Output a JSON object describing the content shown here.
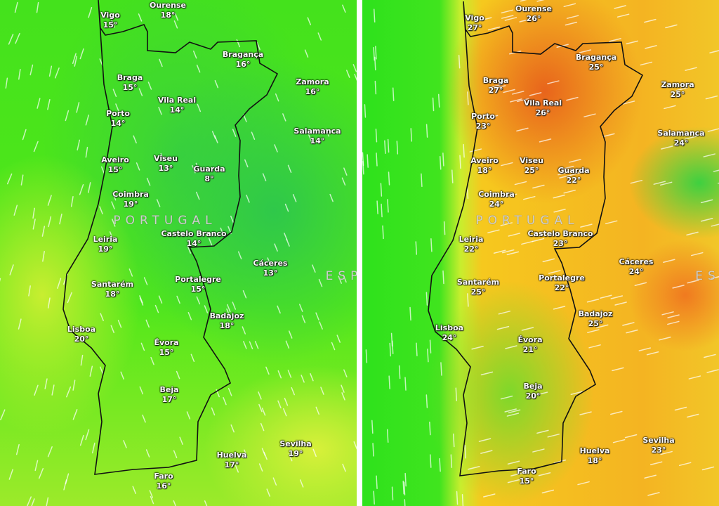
{
  "panels": [
    {
      "country_labels": {
        "portugal": "PORTUGAL",
        "spain": "ESP"
      },
      "colors": {
        "land": "#3ad23a",
        "sea": "#44e21c",
        "border": "#111111"
      },
      "cities": [
        {
          "name": "Vigo",
          "temp": "15°"
        },
        {
          "name": "Ourense",
          "temp": "18°"
        },
        {
          "name": "Bragança",
          "temp": "16°"
        },
        {
          "name": "Braga",
          "temp": "15°"
        },
        {
          "name": "Vila Real",
          "temp": "14°"
        },
        {
          "name": "Zamora",
          "temp": "16°"
        },
        {
          "name": "Porto",
          "temp": "14°"
        },
        {
          "name": "Salamanca",
          "temp": "14°"
        },
        {
          "name": "Aveiro",
          "temp": "15°"
        },
        {
          "name": "Viseu",
          "temp": "13°"
        },
        {
          "name": "Guarda",
          "temp": "8°"
        },
        {
          "name": "Coimbra",
          "temp": "19°"
        },
        {
          "name": "Leiria",
          "temp": "19°"
        },
        {
          "name": "Castelo Branco",
          "temp": "14°"
        },
        {
          "name": "Cáceres",
          "temp": "13°"
        },
        {
          "name": "Santarém",
          "temp": "18°"
        },
        {
          "name": "Portalegre",
          "temp": "15°"
        },
        {
          "name": "Lisboa",
          "temp": "20°"
        },
        {
          "name": "Badajoz",
          "temp": "18°"
        },
        {
          "name": "Évora",
          "temp": "15°"
        },
        {
          "name": "Beja",
          "temp": "17°"
        },
        {
          "name": "Huelva",
          "temp": "17°"
        },
        {
          "name": "Sevilha",
          "temp": "19°"
        },
        {
          "name": "Faro",
          "temp": "16°"
        }
      ]
    },
    {
      "country_labels": {
        "portugal": "PORTUGAL",
        "spain": "ES"
      },
      "colors": {
        "land": "#f4b422",
        "sea": "#2ee21c",
        "border": "#111111"
      },
      "cities": [
        {
          "name": "Vigo",
          "temp": "27°"
        },
        {
          "name": "Ourense",
          "temp": "26°"
        },
        {
          "name": "Bragança",
          "temp": "25°"
        },
        {
          "name": "Braga",
          "temp": "27°"
        },
        {
          "name": "Vila Real",
          "temp": "26°"
        },
        {
          "name": "Zamora",
          "temp": "25°"
        },
        {
          "name": "Porto",
          "temp": "23°"
        },
        {
          "name": "Salamanca",
          "temp": "24°"
        },
        {
          "name": "Aveiro",
          "temp": "18°"
        },
        {
          "name": "Viseu",
          "temp": "25°"
        },
        {
          "name": "Guarda",
          "temp": "22°"
        },
        {
          "name": "Coimbra",
          "temp": "24°"
        },
        {
          "name": "Leiria",
          "temp": "22°"
        },
        {
          "name": "Castelo Branco",
          "temp": "23°"
        },
        {
          "name": "Cáceres",
          "temp": "24°"
        },
        {
          "name": "Santarém",
          "temp": "25°"
        },
        {
          "name": "Portalegre",
          "temp": "22°"
        },
        {
          "name": "Lisboa",
          "temp": "24°"
        },
        {
          "name": "Badajoz",
          "temp": "25°"
        },
        {
          "name": "Évora",
          "temp": "21°"
        },
        {
          "name": "Beja",
          "temp": "20°"
        },
        {
          "name": "Huelva",
          "temp": "18°"
        },
        {
          "name": "Sevilha",
          "temp": "23°"
        },
        {
          "name": "Faro",
          "temp": "15°"
        }
      ]
    }
  ]
}
